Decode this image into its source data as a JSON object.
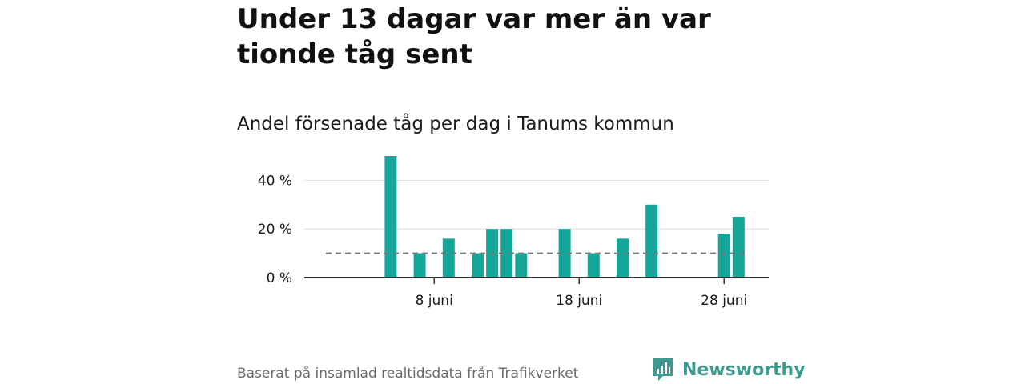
{
  "title": "Under 13 dagar var mer än var tionde tåg sent",
  "subtitle": "Andel försenade tåg per dag i Tanums kommun",
  "footer": "Baserat på insamlad realtidsdata från Trafikverket",
  "brand": {
    "name": "Newsworthy",
    "icon": "newsworthy-bar-chart-logo-icon",
    "color": "#3e9a90"
  },
  "colors": {
    "bar": "#14a699",
    "reference_line": "#777777",
    "grid": "#dcdcdc",
    "axis": "#333333"
  },
  "chart_data": {
    "type": "bar",
    "x_unit": "day of June",
    "x_range": [
      1,
      30
    ],
    "x_ticks": [
      {
        "day": 8,
        "label": "8 juni"
      },
      {
        "day": 18,
        "label": "18 juni"
      },
      {
        "day": 28,
        "label": "28 juni"
      }
    ],
    "y_ticks": [
      {
        "value": 0,
        "label": "0 %"
      },
      {
        "value": 20,
        "label": "20 %"
      },
      {
        "value": 40,
        "label": "40 %"
      }
    ],
    "ylim": [
      0,
      50
    ],
    "grid": true,
    "reference_line": {
      "value": 10,
      "style": "dashed"
    },
    "points": [
      {
        "day": 5,
        "value": 50
      },
      {
        "day": 7,
        "value": 10
      },
      {
        "day": 9,
        "value": 16
      },
      {
        "day": 11,
        "value": 10
      },
      {
        "day": 12,
        "value": 20
      },
      {
        "day": 13,
        "value": 20
      },
      {
        "day": 14,
        "value": 10
      },
      {
        "day": 17,
        "value": 20
      },
      {
        "day": 19,
        "value": 10
      },
      {
        "day": 21,
        "value": 16
      },
      {
        "day": 23,
        "value": 30
      },
      {
        "day": 28,
        "value": 18
      },
      {
        "day": 29,
        "value": 25
      }
    ]
  }
}
